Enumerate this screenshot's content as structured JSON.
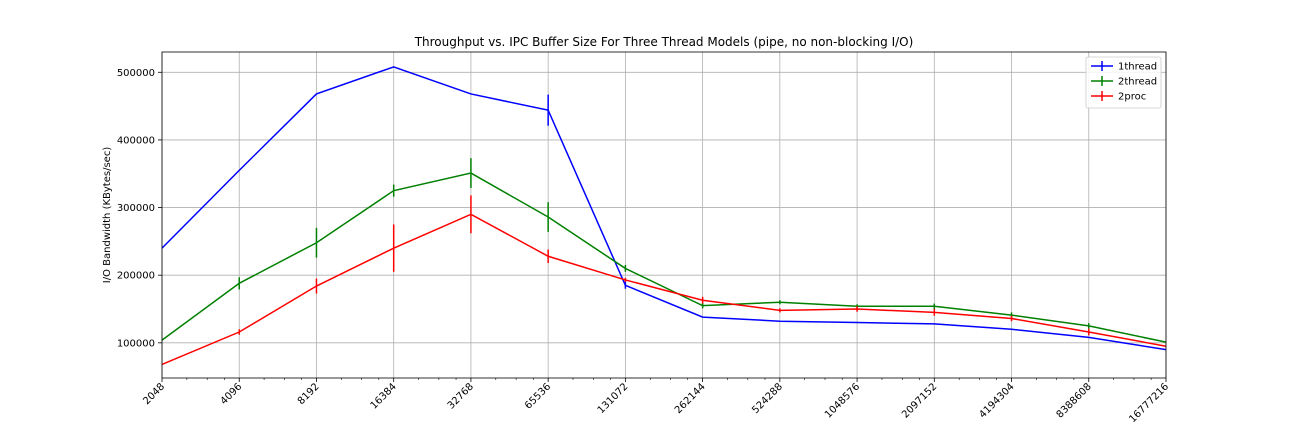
{
  "chart_data": {
    "type": "line",
    "title": "Throughput vs. IPC Buffer Size For Three Thread Models (pipe, no non-blocking I/O)",
    "xlabel": "",
    "ylabel": "I/O Bandwidth (KBytes/sec)",
    "xscale": "log2",
    "x": [
      2048,
      4096,
      8192,
      16384,
      32768,
      65536,
      131072,
      262144,
      524288,
      1048576,
      2097152,
      4194304,
      8388608,
      16777216
    ],
    "x_tick_labels": [
      "2048",
      "4096",
      "8192",
      "16384",
      "32768",
      "65536",
      "131072",
      "262144",
      "524288",
      "1048576",
      "2097152",
      "4194304",
      "8388608",
      "16777216"
    ],
    "xlim": [
      2048,
      16777216
    ],
    "ylim": [
      48000,
      530000
    ],
    "y_ticks": [
      100000,
      200000,
      300000,
      400000,
      500000
    ],
    "y_tick_labels": [
      "100000",
      "200000",
      "300000",
      "400000",
      "500000"
    ],
    "grid": true,
    "legend_position": "top-right",
    "series": [
      {
        "name": "1thread",
        "color": "#0000ff",
        "values": [
          240000,
          355000,
          468000,
          508000,
          468000,
          444000,
          185000,
          138000,
          132000,
          130000,
          128000,
          120000,
          108000,
          90000
        ],
        "error": [
          0,
          0,
          0,
          0,
          0,
          23000,
          5000,
          0,
          0,
          0,
          0,
          0,
          0,
          0
        ]
      },
      {
        "name": "2thread",
        "color": "#008000",
        "values": [
          104000,
          188000,
          248000,
          325000,
          351000,
          286000,
          210000,
          155000,
          160000,
          154000,
          154000,
          141000,
          125000,
          101000
        ],
        "error": [
          0,
          9000,
          22000,
          9000,
          22000,
          22000,
          5000,
          4000,
          3000,
          3000,
          4000,
          4000,
          4000,
          0
        ]
      },
      {
        "name": "2proc",
        "color": "#ff0000",
        "values": [
          68000,
          116000,
          184000,
          240000,
          290000,
          228000,
          193000,
          163000,
          148000,
          150000,
          145000,
          136000,
          116000,
          95000
        ],
        "error": [
          0,
          4000,
          11000,
          35000,
          28000,
          10000,
          3000,
          5000,
          3000,
          4000,
          5000,
          4000,
          5000,
          0
        ]
      }
    ]
  }
}
